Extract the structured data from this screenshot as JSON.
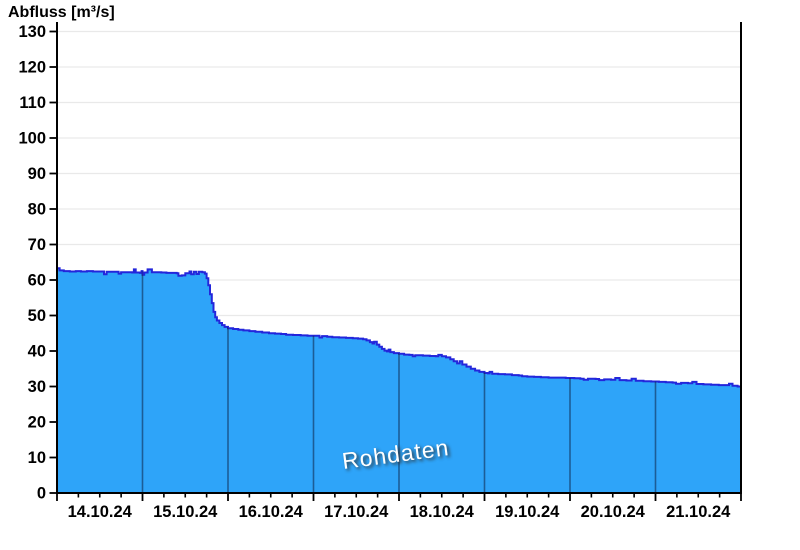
{
  "chart_data": {
    "type": "area",
    "title": "Abfluss [m³/s]",
    "watermark": "Rohdaten",
    "ylabel": "Abfluss [m³/s]",
    "ylim": [
      0,
      130
    ],
    "y_tick_step": 10,
    "y_ticks": [
      0,
      10,
      20,
      30,
      40,
      50,
      60,
      70,
      80,
      90,
      100,
      110,
      120,
      130
    ],
    "x_days": 8,
    "minor_ticks_per_day": 4,
    "x_tick_labels": [
      "14.10.24",
      "15.10.24",
      "16.10.24",
      "17.10.24",
      "18.10.24",
      "19.10.24",
      "20.10.24",
      "21.10.24"
    ],
    "grid": "horizontal-only",
    "legend": "none",
    "colors": {
      "area_fill": "#2EA4F9",
      "line_stroke": "#2326DB",
      "grid_line": "#e9e9e9",
      "axis": "#000000",
      "day_boundary_line": "rgba(15,35,70,0.55)",
      "tick_label": "#000000"
    },
    "series": [
      {
        "name": "Abfluss Rohdaten",
        "unit": "m³/s",
        "points": [
          [
            0.0,
            63.3
          ],
          [
            0.02,
            63.3
          ],
          [
            0.03,
            62.7
          ],
          [
            0.08,
            62.5
          ],
          [
            0.15,
            62.4
          ],
          [
            0.22,
            62.5
          ],
          [
            0.28,
            62.4
          ],
          [
            0.35,
            62.5
          ],
          [
            0.42,
            62.4
          ],
          [
            0.5,
            62.4
          ],
          [
            0.53,
            62.4
          ],
          [
            0.55,
            61.6
          ],
          [
            0.58,
            62.3
          ],
          [
            0.64,
            62.3
          ],
          [
            0.7,
            62.3
          ],
          [
            0.72,
            61.8
          ],
          [
            0.75,
            62.2
          ],
          [
            0.82,
            62.2
          ],
          [
            0.88,
            62.1
          ],
          [
            0.9,
            63.0
          ],
          [
            0.92,
            62.1
          ],
          [
            0.97,
            62.0
          ],
          [
            0.99,
            62.5
          ],
          [
            1.0,
            61.5
          ],
          [
            1.02,
            62.1
          ],
          [
            1.06,
            63.0
          ],
          [
            1.09,
            63.0
          ],
          [
            1.11,
            62.2
          ],
          [
            1.18,
            62.2
          ],
          [
            1.22,
            62.1
          ],
          [
            1.28,
            62.0
          ],
          [
            1.34,
            62.0
          ],
          [
            1.4,
            61.9
          ],
          [
            1.42,
            61.2
          ],
          [
            1.46,
            61.3
          ],
          [
            1.5,
            61.9
          ],
          [
            1.55,
            62.4
          ],
          [
            1.57,
            61.6
          ],
          [
            1.6,
            62.3
          ],
          [
            1.63,
            61.7
          ],
          [
            1.66,
            62.3
          ],
          [
            1.7,
            62.2
          ],
          [
            1.73,
            61.8
          ],
          [
            1.75,
            60.5
          ],
          [
            1.77,
            58.5
          ],
          [
            1.79,
            56.0
          ],
          [
            1.81,
            53.5
          ],
          [
            1.83,
            51.0
          ],
          [
            1.85,
            49.5
          ],
          [
            1.87,
            48.6
          ],
          [
            1.9,
            47.9
          ],
          [
            1.93,
            47.3
          ],
          [
            1.96,
            46.8
          ],
          [
            2.0,
            46.4
          ],
          [
            2.06,
            46.2
          ],
          [
            2.12,
            46.0
          ],
          [
            2.18,
            45.8
          ],
          [
            2.25,
            45.6
          ],
          [
            2.32,
            45.4
          ],
          [
            2.4,
            45.2
          ],
          [
            2.48,
            45.0
          ],
          [
            2.55,
            44.9
          ],
          [
            2.62,
            44.8
          ],
          [
            2.68,
            44.6
          ],
          [
            2.76,
            44.5
          ],
          [
            2.85,
            44.4
          ],
          [
            2.93,
            44.3
          ],
          [
            3.0,
            44.3
          ],
          [
            3.05,
            44.3
          ],
          [
            3.07,
            43.8
          ],
          [
            3.1,
            44.2
          ],
          [
            3.16,
            44.0
          ],
          [
            3.22,
            43.9
          ],
          [
            3.3,
            43.8
          ],
          [
            3.38,
            43.7
          ],
          [
            3.46,
            43.6
          ],
          [
            3.52,
            43.5
          ],
          [
            3.58,
            43.3
          ],
          [
            3.62,
            43.0
          ],
          [
            3.66,
            42.5
          ],
          [
            3.69,
            42.1
          ],
          [
            3.71,
            42.6
          ],
          [
            3.74,
            41.8
          ],
          [
            3.77,
            41.2
          ],
          [
            3.8,
            40.6
          ],
          [
            3.83,
            40.1
          ],
          [
            3.86,
            39.9
          ],
          [
            3.88,
            40.4
          ],
          [
            3.9,
            39.7
          ],
          [
            3.94,
            39.4
          ],
          [
            4.0,
            39.2
          ],
          [
            4.06,
            39.0
          ],
          [
            4.12,
            38.9
          ],
          [
            4.16,
            38.5
          ],
          [
            4.19,
            38.8
          ],
          [
            4.28,
            38.7
          ],
          [
            4.36,
            38.6
          ],
          [
            4.43,
            38.5
          ],
          [
            4.46,
            38.9
          ],
          [
            4.5,
            38.5
          ],
          [
            4.55,
            38.2
          ],
          [
            4.6,
            37.7
          ],
          [
            4.64,
            37.1
          ],
          [
            4.68,
            36.5
          ],
          [
            4.71,
            37.1
          ],
          [
            4.74,
            36.2
          ],
          [
            4.79,
            35.6
          ],
          [
            4.84,
            35.0
          ],
          [
            4.89,
            34.5
          ],
          [
            4.94,
            34.1
          ],
          [
            5.0,
            33.8
          ],
          [
            5.04,
            33.7
          ],
          [
            5.06,
            34.1
          ],
          [
            5.09,
            33.6
          ],
          [
            5.16,
            33.5
          ],
          [
            5.24,
            33.4
          ],
          [
            5.32,
            33.2
          ],
          [
            5.4,
            33.1
          ],
          [
            5.44,
            32.9
          ],
          [
            5.5,
            32.8
          ],
          [
            5.58,
            32.7
          ],
          [
            5.66,
            32.6
          ],
          [
            5.75,
            32.5
          ],
          [
            5.85,
            32.5
          ],
          [
            5.95,
            32.4
          ],
          [
            6.05,
            32.3
          ],
          [
            6.12,
            32.2
          ],
          [
            6.16,
            31.9
          ],
          [
            6.21,
            32.2
          ],
          [
            6.3,
            32.1
          ],
          [
            6.34,
            31.8
          ],
          [
            6.4,
            32.0
          ],
          [
            6.48,
            31.9
          ],
          [
            6.53,
            32.4
          ],
          [
            6.58,
            31.8
          ],
          [
            6.66,
            31.7
          ],
          [
            6.72,
            32.2
          ],
          [
            6.77,
            31.6
          ],
          [
            6.86,
            31.5
          ],
          [
            6.95,
            31.4
          ],
          [
            7.04,
            31.3
          ],
          [
            7.12,
            31.2
          ],
          [
            7.2,
            31.1
          ],
          [
            7.24,
            30.8
          ],
          [
            7.3,
            31.0
          ],
          [
            7.38,
            30.9
          ],
          [
            7.43,
            31.3
          ],
          [
            7.48,
            30.7
          ],
          [
            7.56,
            30.6
          ],
          [
            7.65,
            30.5
          ],
          [
            7.74,
            30.4
          ],
          [
            7.82,
            30.4
          ],
          [
            7.86,
            30.8
          ],
          [
            7.9,
            30.2
          ],
          [
            7.96,
            30.0
          ],
          [
            8.0,
            29.9
          ]
        ]
      }
    ]
  }
}
